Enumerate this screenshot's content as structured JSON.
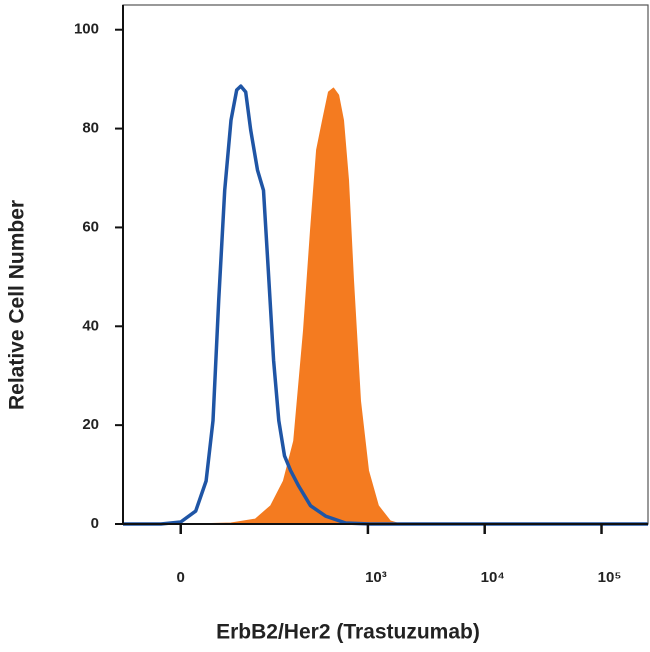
{
  "chart_data": {
    "type": "histogram-overlay",
    "x_label": "ErbB2/Her2 (Trastuzumab)",
    "y_label": "Relative Cell Number",
    "xscale": "arcsinh",
    "xlim": [
      -70,
      250000
    ],
    "ylim": [
      0,
      105
    ],
    "xticks": [
      0,
      {
        "value": 1000,
        "label": "10³"
      },
      {
        "value": 10000,
        "label": "10⁴"
      },
      {
        "value": 100000,
        "label": "10⁵"
      }
    ],
    "yticks": [
      0,
      20,
      40,
      60,
      80,
      100
    ],
    "series": [
      {
        "color": "#f47b20",
        "fill": true,
        "x": [
          -70,
          10,
          58,
          103,
          143,
          186,
          229,
          279,
          321,
          362,
          408,
          459,
          507,
          560,
          618,
          682,
          753,
          864,
          1011,
          1231,
          1559,
          1900,
          250000
        ],
        "values": [
          0,
          0,
          0.2,
          1.0,
          3.7,
          8.7,
          16.8,
          39.1,
          59.4,
          75.7,
          81.7,
          87.4,
          88.2,
          86.8,
          81.7,
          69.6,
          49.3,
          24.9,
          10.8,
          3.7,
          0.6,
          0,
          0
        ]
      },
      {
        "color": "#1f55a5",
        "fill": false,
        "x": [
          -70,
          -20,
          0,
          15,
          26,
          34,
          41,
          49,
          58,
          67,
          74,
          83,
          93,
          108,
          123,
          136,
          152,
          169,
          190,
          215,
          253,
          321,
          433,
          643,
          1050,
          250000
        ],
        "values": [
          0,
          0,
          0.4,
          2.6,
          8.7,
          20.9,
          45.2,
          67.5,
          81.7,
          87.8,
          88.6,
          87.4,
          79.7,
          71.6,
          67.5,
          51.3,
          33.1,
          20.9,
          13.8,
          10.8,
          7.7,
          3.7,
          1.6,
          0.2,
          0,
          0
        ]
      }
    ]
  }
}
